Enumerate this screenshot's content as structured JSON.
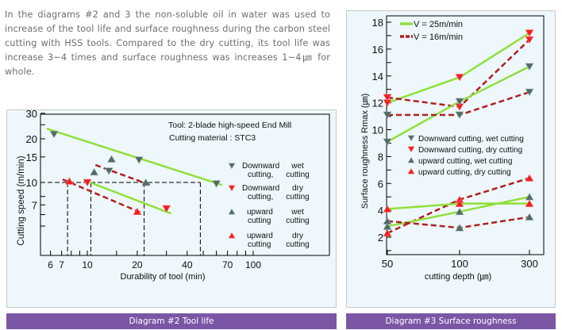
{
  "intro_text": "In the diagrams #2 and 3 the non-soluble oil in water was used to increase of the tool life and surface roughness during the carbon steel cutting with HSS tools. Compared to the dry cutting, its tool life was increase 3~4 times and surface roughness was increases 1~4㎛ for whole.",
  "colors": {
    "caption_bg": "#7b56a4",
    "panel_bg": "#eef7fc",
    "green_line": "#8fe03a",
    "red_dashed": "#b02020",
    "wet_marker": "#4f6b66",
    "dry_marker": "#ee2020"
  },
  "captions": {
    "left": "Diagram #2 Tool life",
    "right": "Diagram #3 Surface roughness"
  },
  "chart_data": [
    {
      "type": "line",
      "title": "Diagram #2 Tool life",
      "xlabel": "Durability of tool (min)",
      "ylabel": "Cutting speed (m/min)",
      "xscale": "log",
      "yscale": "log",
      "xticks": [
        6,
        7,
        10,
        20,
        40,
        70,
        100
      ],
      "yticks": [
        30,
        20,
        15,
        10,
        7
      ],
      "xlim": [
        5,
        110
      ],
      "ylim": [
        4.2,
        30
      ],
      "annotations": [
        "Tool: 2-blade high-speed End Mill",
        "Cutting material : STC3"
      ],
      "legend": [
        {
          "marker": "down-triangle",
          "color": "wet",
          "label1": "Downward",
          "label2": "cutting,",
          "label3": "wet",
          "label4": "cutting"
        },
        {
          "marker": "down-triangle",
          "color": "dry",
          "label1": "Downward",
          "label2": "cutting,",
          "label3": "dry",
          "label4": "cutting"
        },
        {
          "marker": "up-triangle",
          "color": "wet",
          "label1": "upward",
          "label2": "cutting",
          "label3": "wet",
          "label4": "cutting"
        },
        {
          "marker": "up-triangle",
          "color": "dry",
          "label1": "upward",
          "label2": "cutting",
          "label3": "dry",
          "label4": "cutting"
        }
      ],
      "lines": [
        {
          "name": "wet cutting (solid)",
          "style": "solid",
          "points": [
            [
              5.7,
              23.5
            ],
            [
              65,
              9.6
            ]
          ]
        },
        {
          "name": "wet cutting (dashed)",
          "style": "dashed",
          "points": [
            [
              11.2,
              13.2
            ],
            [
              24,
              9.6
            ]
          ]
        },
        {
          "name": "dry cutting (dashed)",
          "style": "dashed",
          "points": [
            [
              7.1,
              10.5
            ],
            [
              21,
              6.2
            ]
          ]
        },
        {
          "name": "dry cutting (solid)",
          "style": "solid",
          "points": [
            [
              10.4,
              10.0
            ],
            [
              32,
              6.1
            ]
          ]
        }
      ],
      "points": [
        {
          "x": 6.3,
          "y": 21.5,
          "marker": "down",
          "cond": "wet"
        },
        {
          "x": 14.0,
          "y": 14.5,
          "marker": "up",
          "cond": "wet"
        },
        {
          "x": 20.5,
          "y": 14.3,
          "marker": "down",
          "cond": "wet"
        },
        {
          "x": 60,
          "y": 9.8,
          "marker": "down",
          "cond": "wet"
        },
        {
          "x": 11.0,
          "y": 11.8,
          "marker": "up",
          "cond": "wet"
        },
        {
          "x": 13.5,
          "y": 12.0,
          "marker": "down",
          "cond": "wet"
        },
        {
          "x": 22.5,
          "y": 10.0,
          "marker": "up",
          "cond": "wet"
        },
        {
          "x": 7.8,
          "y": 10.2,
          "marker": "up",
          "cond": "dry"
        },
        {
          "x": 20,
          "y": 6.3,
          "marker": "up",
          "cond": "dry"
        },
        {
          "x": 10,
          "y": 10.0,
          "marker": "down",
          "cond": "dry"
        },
        {
          "x": 30,
          "y": 6.6,
          "marker": "down",
          "cond": "dry"
        }
      ],
      "reference_lines": {
        "y": 10,
        "x": [
          7.6,
          10.5,
          22,
          48
        ]
      }
    },
    {
      "type": "line",
      "title": "Diagram #3 Surface roughness",
      "xlabel": "cutting depth (㎛)",
      "ylabel": "Surface roughness Rmax (㎛)",
      "categories": [
        "50",
        "100",
        "300"
      ],
      "yticks": [
        2,
        4,
        6,
        8,
        10,
        12,
        14,
        16,
        18
      ],
      "ylim": [
        0.8,
        18.5
      ],
      "series_legend": [
        {
          "name": "V = 25m/min",
          "style": "solid"
        },
        {
          "name": "V = 16m/min",
          "style": "dashed"
        }
      ],
      "marker_legend": [
        {
          "marker": "down",
          "cond": "wet",
          "label": "Downward cutting, wet cutting"
        },
        {
          "marker": "down",
          "cond": "dry",
          "label": "Downward cutting, dry cutting"
        },
        {
          "marker": "up",
          "cond": "wet",
          "label": "upward cutting, wet cutting"
        },
        {
          "marker": "up",
          "cond": "dry",
          "label": "upward cutting, dry cutting"
        }
      ],
      "series": [
        {
          "name": "V=25, downward, dry",
          "style": "solid",
          "marker": "down",
          "cond": "dry",
          "values": [
            12.0,
            13.9,
            17.2
          ]
        },
        {
          "name": "V=16, downward, dry",
          "style": "dashed",
          "marker": "down",
          "cond": "dry",
          "values": [
            12.4,
            11.7,
            16.7
          ]
        },
        {
          "name": "V=25, downward, wet",
          "style": "solid",
          "marker": "down",
          "cond": "wet",
          "values": [
            9.1,
            12.1,
            14.7
          ]
        },
        {
          "name": "V=16, downward, wet",
          "style": "dashed",
          "marker": "down",
          "cond": "wet",
          "values": [
            11.1,
            11.1,
            12.8
          ]
        },
        {
          "name": "V=16, upward, dry",
          "style": "dashed",
          "marker": "up",
          "cond": "dry",
          "values": [
            2.3,
            4.8,
            6.4
          ]
        },
        {
          "name": "V=25, upward, dry",
          "style": "solid",
          "marker": "up",
          "cond": "dry",
          "values": [
            4.1,
            4.5,
            4.5
          ]
        },
        {
          "name": "V=25, upward, wet",
          "style": "solid",
          "marker": "up",
          "cond": "wet",
          "values": [
            2.8,
            3.9,
            5.0
          ]
        },
        {
          "name": "V=16, upward, wet",
          "style": "dashed",
          "marker": "up",
          "cond": "wet",
          "values": [
            3.2,
            2.7,
            3.5
          ]
        }
      ]
    }
  ]
}
